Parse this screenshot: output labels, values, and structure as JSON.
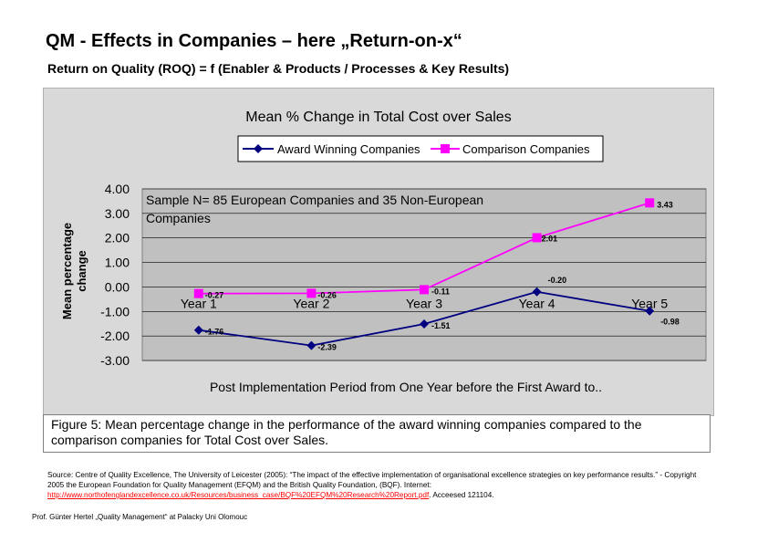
{
  "slide": {
    "title": "QM - Effects in Companies – here „Return-on-x“",
    "subtitle": "Return on Quality (ROQ) = f (Enabler & Products / Processes & Key Results)"
  },
  "caption": "Figure 5: Mean percentage change in the performance of the award winning companies compared to the comparison companies for Total Cost over Sales.",
  "source": {
    "text": "Source: Centre of Quality Excellence, The University of Leicester (2005):  “The impact of the effective implementation of organisational excellence strategies on key performance results.” - Copyright 2005 the European Foundation for Quality Management (EFQM) and the British Quality Foundation, (BQF). Internet:",
    "link": "http://www.northofenglandexcellence.co.uk/Resources/business_case/BQF%20EFQM%20Research%20Report.pdf",
    "tail": ". Acceesed 121104."
  },
  "footer": "Prof. Günter Hertel „Quality Management“ at Palacky Uni Olomouc",
  "chart_data": {
    "type": "line",
    "title": "Mean % Change in Total Cost over Sales",
    "xlabel": "Post Implementation Period from One Year before the First Award to..",
    "ylabel_line1": "Mean percentage",
    "ylabel_line2": "change",
    "categories": [
      "Year 1",
      "Year 2",
      "Year 3",
      "Year 4",
      "Year 5"
    ],
    "ylim": [
      -3.0,
      4.0
    ],
    "yticks": [
      "4.00",
      "3.00",
      "2.00",
      "1.00",
      "0.00",
      "-1.00",
      "-2.00",
      "-3.00"
    ],
    "annotation": "Sample N= 85 European Companies and 35 Non-European Companies",
    "grid": true,
    "legend_position": "top",
    "series": [
      {
        "name": "Award Winning Companies",
        "color": "#000080",
        "marker": "diamond",
        "values": [
          -1.76,
          -2.39,
          -1.51,
          -0.2,
          -0.98
        ],
        "labels": [
          "-1.76",
          "-2.39",
          "-1.51",
          "-0.20",
          "-0.98"
        ]
      },
      {
        "name": "Comparison Companies",
        "color": "#ff00ff",
        "marker": "square",
        "values": [
          -0.27,
          -0.26,
          -0.11,
          2.01,
          3.43
        ],
        "labels": [
          "-0.27",
          "-0.26",
          "-0.11",
          "2.01",
          "3.43"
        ]
      }
    ]
  }
}
